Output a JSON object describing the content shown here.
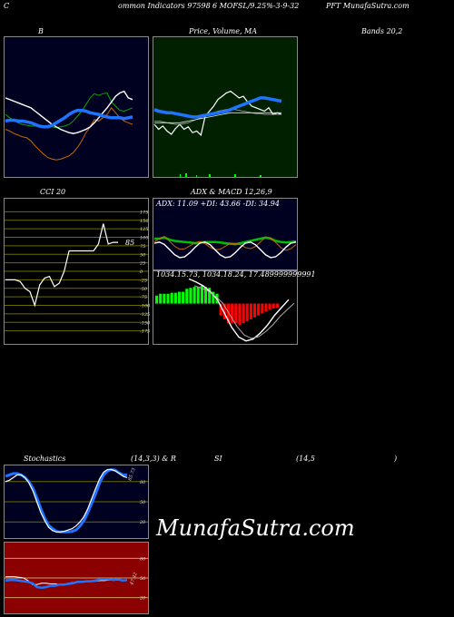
{
  "header": {
    "left": "C",
    "seg1": "ommon  Indicators 97598",
    "seg2": "6  MOFSL/9.25%-3-9-32",
    "seg3": "PFT MunafaSutra.com"
  },
  "titles": {
    "bollinger": "B",
    "price_ma": "Price,  Volume,  MA",
    "bands": "Bands 20,2",
    "cci": "CCI 20",
    "adx_macd": "ADX  & MACD 12,26,9",
    "stoch_a": "Stochastics",
    "stoch_b": "(14,3,3) & R",
    "stoch_c": "SI",
    "stoch_d": "(14,5",
    "stoch_e": ")"
  },
  "watermark": "MunafaSutra.com",
  "colors": {
    "panel_blue": "#000020",
    "panel_green": "#002000",
    "grid_olive": "#6b6b00",
    "rsi_bg": "#8b0000",
    "blue": "#1e73ff",
    "green": "#00c000",
    "orange": "#cc6600"
  },
  "chart_data": [
    {
      "type": "line",
      "name": "bollinger",
      "series": [
        {
          "name": "",
          "values": [
            70,
            66,
            63,
            60,
            58,
            57,
            56,
            56,
            55,
            55,
            56,
            55,
            54,
            55,
            56,
            58,
            62,
            68,
            74,
            82,
            90,
            95,
            93,
            95,
            96,
            85,
            80,
            75,
            74,
            76,
            78
          ]
        },
        {
          "name": "",
          "values": [
            52,
            50,
            47,
            45,
            43,
            42,
            38,
            32,
            27,
            22,
            18,
            16,
            15,
            16,
            18,
            20,
            24,
            30,
            38,
            48,
            55,
            64,
            62,
            66,
            70,
            78,
            72,
            66,
            62,
            60,
            58
          ]
        },
        {
          "name": "",
          "values": [
            90,
            88,
            86,
            84,
            82,
            80,
            78,
            74,
            70,
            66,
            62,
            58,
            55,
            52,
            50,
            48,
            47,
            48,
            50,
            52,
            55,
            60,
            66,
            72,
            78,
            85,
            92,
            96,
            98,
            90,
            88
          ]
        }
      ],
      "blue_series": [
        62,
        63,
        63,
        62,
        62,
        61,
        60,
        58,
        56,
        55,
        55,
        57,
        60,
        63,
        66,
        70,
        73,
        75,
        75,
        74,
        72,
        71,
        70,
        68,
        67,
        66,
        66,
        66,
        65,
        66,
        67
      ],
      "ylim": [
        0,
        160
      ]
    },
    {
      "type": "line",
      "name": "price-ma",
      "series": [
        {
          "name": "",
          "values": [
            58,
            52,
            56,
            50,
            46,
            53,
            58,
            52,
            55,
            48,
            50,
            45,
            68,
            74,
            80,
            88,
            92,
            96,
            98,
            94,
            90,
            92,
            85,
            80,
            78,
            76,
            74,
            78,
            70,
            72,
            70
          ]
        },
        {
          "name": "",
          "values": [
            62,
            62,
            61,
            60,
            59,
            58,
            58,
            59,
            60,
            62,
            64,
            66,
            68,
            70,
            72,
            74,
            75,
            76,
            76,
            76,
            75,
            74,
            73,
            72,
            71,
            71,
            70,
            70,
            70,
            70,
            70
          ]
        },
        {
          "name": "",
          "values": [
            60,
            60,
            60,
            60,
            60,
            60,
            60,
            61,
            62,
            63,
            64,
            65,
            66,
            67,
            68,
            69,
            70,
            71,
            72,
            72,
            72,
            72,
            72,
            72,
            72,
            72,
            72,
            72,
            72,
            72,
            72
          ]
        }
      ],
      "blue_series": [
        76,
        74,
        73,
        72,
        72,
        71,
        70,
        69,
        68,
        67,
        67,
        68,
        69,
        70,
        71,
        72,
        73,
        74,
        76,
        78,
        80,
        82,
        84,
        86,
        88,
        90,
        90,
        89,
        88,
        87,
        86
      ],
      "ylim": [
        0,
        160
      ]
    },
    {
      "type": "line",
      "name": "cci",
      "title": "CCI 20",
      "last_label": "85",
      "yticks": [
        175,
        150,
        125,
        100,
        75,
        50,
        25,
        0,
        -25,
        -50,
        -75,
        -100,
        -125,
        -150,
        -175
      ],
      "values": [
        -25,
        -25,
        -25,
        -30,
        -50,
        -60,
        -100,
        -40,
        -20,
        -15,
        -45,
        -35,
        0,
        60,
        60,
        60,
        60,
        60,
        60,
        80,
        140,
        80,
        85,
        85
      ],
      "ylim": [
        -200,
        200
      ]
    },
    {
      "type": "line",
      "name": "adx",
      "label": "ADX: 11.09  +DI: 43.66  -DI: 34.94",
      "values": [
        50,
        50,
        52,
        48,
        46,
        45,
        44,
        43,
        42,
        43,
        44,
        44,
        44,
        43,
        42,
        41,
        40,
        42,
        44,
        46,
        48,
        50,
        52,
        50,
        46,
        44,
        43,
        44,
        45
      ],
      "ylim": [
        0,
        100
      ]
    },
    {
      "type": "bar",
      "name": "macd",
      "label": "1034.15.73,  1034.18.24,  17.489999999991",
      "values": [
        8,
        10,
        10,
        10,
        11,
        11,
        12,
        12,
        15,
        16,
        17,
        17,
        18,
        17,
        16,
        12,
        10,
        -12,
        -16,
        -20,
        -20,
        -20,
        -22,
        -20,
        -18,
        -16,
        -14,
        -12,
        -10,
        -8,
        -6,
        -5,
        -4
      ],
      "ylim": [
        -40,
        30
      ]
    },
    {
      "type": "line",
      "name": "stochastics",
      "yticks": [
        80,
        50,
        20
      ],
      "last_label": "85.73",
      "series": [
        {
          "name": "",
          "values": [
            88,
            90,
            92,
            92,
            90,
            86,
            80,
            70,
            56,
            40,
            26,
            15,
            10,
            6,
            5,
            5,
            5,
            6,
            8,
            14,
            22,
            34,
            48,
            62,
            78,
            90,
            96,
            98,
            97,
            93,
            90,
            90
          ]
        },
        {
          "name": "",
          "values": [
            80,
            82,
            86,
            90,
            90,
            86,
            78,
            66,
            50,
            34,
            22,
            12,
            7,
            5,
            5,
            6,
            8,
            10,
            14,
            20,
            28,
            40,
            55,
            70,
            84,
            94,
            98,
            98,
            96,
            92,
            88,
            86
          ]
        }
      ],
      "ylim": [
        0,
        100
      ]
    },
    {
      "type": "line",
      "name": "rsi",
      "yticks": [
        80,
        50,
        20
      ],
      "last_label": "47.42",
      "series": [
        {
          "name": "",
          "values": [
            52,
            52,
            52,
            51,
            50,
            46,
            40,
            40,
            42,
            42,
            41,
            41,
            40,
            40,
            42,
            43,
            44,
            44,
            45,
            45,
            45,
            46,
            46,
            47,
            47,
            47,
            47,
            47
          ]
        },
        {
          "name": "",
          "values": [
            46,
            47,
            47,
            46,
            45,
            44,
            42,
            36,
            35,
            36,
            38,
            38,
            40,
            40,
            41,
            42,
            44,
            44,
            45,
            45,
            46,
            48,
            48,
            48,
            47,
            48,
            46,
            47
          ]
        }
      ],
      "ylim": [
        0,
        100
      ]
    }
  ]
}
